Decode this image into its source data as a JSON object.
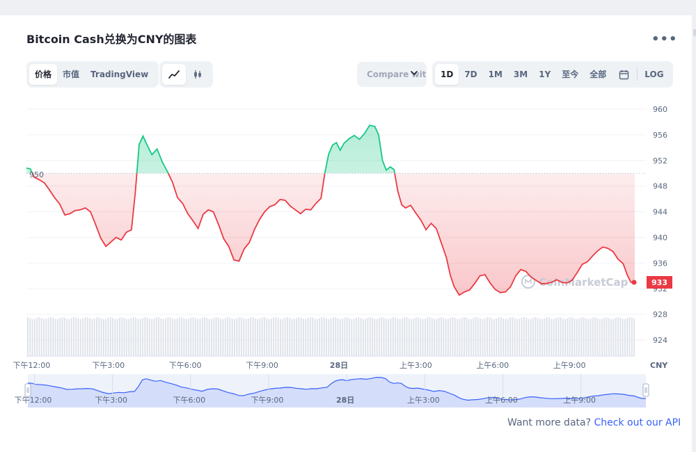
{
  "header": {
    "title": "Bitcoin Cash兑换为CNY的图表",
    "more_icon": "more-horizontal-icon"
  },
  "left_tabs": [
    {
      "label": "价格",
      "active": true
    },
    {
      "label": "市值",
      "active": false
    },
    {
      "label": "TradingView",
      "active": false
    }
  ],
  "chart_type_buttons": [
    {
      "icon": "line-chart-icon",
      "active": true
    },
    {
      "icon": "candlestick-icon",
      "active": false
    }
  ],
  "compare": {
    "label": "Compare with"
  },
  "range_buttons": [
    {
      "label": "1D",
      "active": true
    },
    {
      "label": "7D",
      "active": false
    },
    {
      "label": "1M",
      "active": false
    },
    {
      "label": "3M",
      "active": false
    },
    {
      "label": "1Y",
      "active": false
    },
    {
      "label": "至今",
      "active": false
    },
    {
      "label": "全部",
      "active": false
    }
  ],
  "calendar_icon": "calendar-icon",
  "log_label": "LOG",
  "footer": {
    "text": "Want more data?",
    "link": "Check out our API"
  },
  "colors": {
    "up": "#16c784",
    "down": "#ea3943",
    "reference": "#a6b0c3",
    "navigator": "#3861fb",
    "volume": "#dfe3ea"
  },
  "chart_data": {
    "type": "line",
    "title": "",
    "currency_label": "CNY",
    "watermark": "CoinMarketCap",
    "reference_value": 950,
    "reference_label": "950",
    "current_value": 933,
    "current_label": "933",
    "ylim": [
      922,
      962
    ],
    "y_ticks": [
      "960",
      "956",
      "952",
      "948",
      "944",
      "940",
      "936",
      "932",
      "928",
      "924"
    ],
    "x_ticks": [
      {
        "t": 1,
        "label": "下午12:00"
      },
      {
        "t": 4,
        "label": "下午3:00"
      },
      {
        "t": 7,
        "label": "下午6:00"
      },
      {
        "t": 10,
        "label": "下午9:00"
      },
      {
        "t": 13,
        "label": "28日"
      },
      {
        "t": 16,
        "label": "上午3:00"
      },
      {
        "t": 19,
        "label": "上午6:00"
      },
      {
        "t": 22,
        "label": "上午9:00"
      }
    ],
    "x_range": [
      0.8,
      24.55
    ],
    "series": [
      {
        "values": [
          [
            0.8,
            950.8
          ],
          [
            0.95,
            950.7
          ],
          [
            1.1,
            949.4
          ],
          [
            1.3,
            949.0
          ],
          [
            1.5,
            948.5
          ],
          [
            1.7,
            947.4
          ],
          [
            1.9,
            946.2
          ],
          [
            2.1,
            945.2
          ],
          [
            2.3,
            943.5
          ],
          [
            2.5,
            943.7
          ],
          [
            2.7,
            944.2
          ],
          [
            2.9,
            944.3
          ],
          [
            3.1,
            944.6
          ],
          [
            3.3,
            944.0
          ],
          [
            3.5,
            942.0
          ],
          [
            3.7,
            939.9
          ],
          [
            3.9,
            938.6
          ],
          [
            4.1,
            939.3
          ],
          [
            4.3,
            940.0
          ],
          [
            4.5,
            939.6
          ],
          [
            4.7,
            940.8
          ],
          [
            4.9,
            941.2
          ],
          [
            5.05,
            947.0
          ],
          [
            5.2,
            954.5
          ],
          [
            5.35,
            955.8
          ],
          [
            5.5,
            954.5
          ],
          [
            5.7,
            952.9
          ],
          [
            5.9,
            953.8
          ],
          [
            6.1,
            951.8
          ],
          [
            6.3,
            950.3
          ],
          [
            6.5,
            948.6
          ],
          [
            6.7,
            946.2
          ],
          [
            6.9,
            945.3
          ],
          [
            7.1,
            943.7
          ],
          [
            7.3,
            942.6
          ],
          [
            7.5,
            941.4
          ],
          [
            7.7,
            943.6
          ],
          [
            7.9,
            944.3
          ],
          [
            8.1,
            944.0
          ],
          [
            8.3,
            942.0
          ],
          [
            8.5,
            939.8
          ],
          [
            8.7,
            938.6
          ],
          [
            8.9,
            936.5
          ],
          [
            9.1,
            936.3
          ],
          [
            9.3,
            938.2
          ],
          [
            9.5,
            939.2
          ],
          [
            9.7,
            941.2
          ],
          [
            9.9,
            942.8
          ],
          [
            10.1,
            944.0
          ],
          [
            10.3,
            944.8
          ],
          [
            10.5,
            945.1
          ],
          [
            10.7,
            945.9
          ],
          [
            10.9,
            945.8
          ],
          [
            11.1,
            944.9
          ],
          [
            11.3,
            944.3
          ],
          [
            11.5,
            943.7
          ],
          [
            11.7,
            944.4
          ],
          [
            11.9,
            944.3
          ],
          [
            12.1,
            945.3
          ],
          [
            12.3,
            946.1
          ],
          [
            12.45,
            950.0
          ],
          [
            12.6,
            953.0
          ],
          [
            12.75,
            954.4
          ],
          [
            12.9,
            954.8
          ],
          [
            13.05,
            953.6
          ],
          [
            13.2,
            954.7
          ],
          [
            13.4,
            955.4
          ],
          [
            13.6,
            955.9
          ],
          [
            13.8,
            955.3
          ],
          [
            14.0,
            956.2
          ],
          [
            14.2,
            957.5
          ],
          [
            14.4,
            957.3
          ],
          [
            14.55,
            956.0
          ],
          [
            14.7,
            952.0
          ],
          [
            14.85,
            950.5
          ],
          [
            15.0,
            951.0
          ],
          [
            15.15,
            950.6
          ],
          [
            15.3,
            947.2
          ],
          [
            15.45,
            945.1
          ],
          [
            15.6,
            944.6
          ],
          [
            15.8,
            945.0
          ],
          [
            16.0,
            943.8
          ],
          [
            16.2,
            942.7
          ],
          [
            16.4,
            941.2
          ],
          [
            16.6,
            942.2
          ],
          [
            16.8,
            941.4
          ],
          [
            17.0,
            939.1
          ],
          [
            17.2,
            936.8
          ],
          [
            17.35,
            934.1
          ],
          [
            17.5,
            932.3
          ],
          [
            17.7,
            931.0
          ],
          [
            17.9,
            931.5
          ],
          [
            18.1,
            931.8
          ],
          [
            18.3,
            932.8
          ],
          [
            18.5,
            934.0
          ],
          [
            18.7,
            934.2
          ],
          [
            18.9,
            932.9
          ],
          [
            19.1,
            931.9
          ],
          [
            19.3,
            931.4
          ],
          [
            19.5,
            931.5
          ],
          [
            19.7,
            932.3
          ],
          [
            19.9,
            934.0
          ],
          [
            20.1,
            935.0
          ],
          [
            20.3,
            934.7
          ],
          [
            20.5,
            933.8
          ],
          [
            20.7,
            933.3
          ],
          [
            20.9,
            932.8
          ],
          [
            21.1,
            932.8
          ],
          [
            21.3,
            933.0
          ],
          [
            21.5,
            933.4
          ],
          [
            21.7,
            933.0
          ],
          [
            21.9,
            932.9
          ],
          [
            22.1,
            933.3
          ],
          [
            22.3,
            934.5
          ],
          [
            22.5,
            935.8
          ],
          [
            22.7,
            936.2
          ],
          [
            22.9,
            937.1
          ],
          [
            23.1,
            937.9
          ],
          [
            23.3,
            938.5
          ],
          [
            23.5,
            938.3
          ],
          [
            23.7,
            937.8
          ],
          [
            23.9,
            936.6
          ],
          [
            24.1,
            935.9
          ],
          [
            24.25,
            934.2
          ],
          [
            24.4,
            933.0
          ],
          [
            24.55,
            933.0
          ]
        ]
      }
    ]
  }
}
